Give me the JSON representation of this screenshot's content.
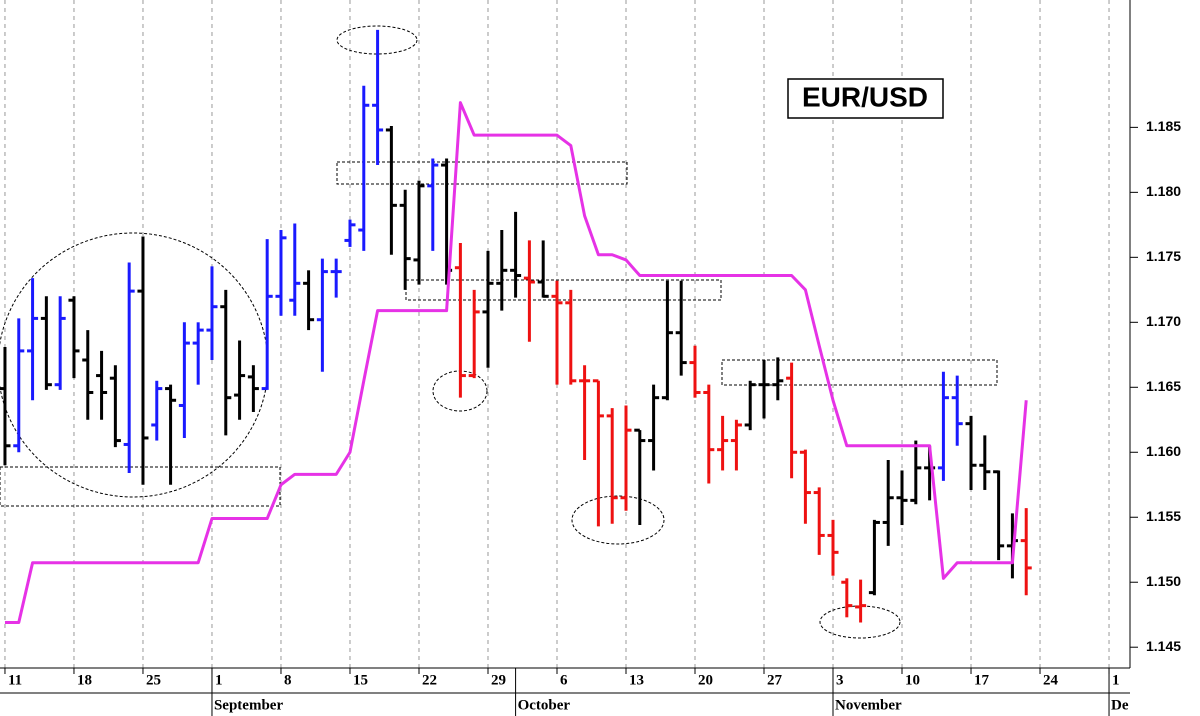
{
  "chart_data": {
    "type": "ohlc",
    "label": "EUR/USD",
    "open": [
      1.1649,
      1.1605,
      1.1678,
      1.1703,
      1.1652,
      1.1717,
      1.1671,
      1.1659,
      1.1657,
      1.1606,
      1.1724,
      1.1621,
      1.1649,
      1.1636,
      1.1684,
      1.1694,
      1.1712,
      1.1644,
      1.1658,
      1.1649,
      1.172,
      1.1717,
      1.173,
      1.1702,
      1.1739,
      1.1763,
      1.1771,
      1.1867,
      1.1848,
      1.179,
      1.1748,
      1.1805,
      1.1821,
      1.1742,
      1.1659,
      1.1708,
      1.173,
      1.174,
      1.1734,
      1.1731,
      1.172,
      1.1715,
      1.1655,
      1.1655,
      1.1628,
      1.1565,
      1.1617,
      1.1609,
      1.1642,
      1.1692,
      1.1669,
      1.1646,
      1.1602,
      1.1609,
      1.1621,
      1.1652,
      1.1652,
      1.1657,
      1.16,
      1.1569,
      1.1536,
      1.15,
      1.1481,
      1.1492,
      1.1546,
      1.1565,
      1.1563,
      1.1588,
      1.1588,
      1.1642,
      1.1622,
      1.159,
      1.1585,
      1.1528,
      1.1532
    ],
    "high": [
      1.1681,
      1.1703,
      1.1734,
      1.172,
      1.172,
      1.172,
      1.1694,
      1.1678,
      1.1667,
      1.1746,
      1.1766,
      1.1655,
      1.1652,
      1.17,
      1.17,
      1.1743,
      1.1725,
      1.1686,
      1.1667,
      1.1764,
      1.1771,
      1.1776,
      1.174,
      1.1749,
      1.1749,
      1.1779,
      1.1882,
      1.1925,
      1.1851,
      1.1802,
      1.1809,
      1.1826,
      1.1826,
      1.1761,
      1.1725,
      1.1755,
      1.1771,
      1.1785,
      1.1763,
      1.1763,
      1.1732,
      1.1725,
      1.1667,
      1.1655,
      1.1634,
      1.1636,
      1.1617,
      1.1652,
      1.1732,
      1.1732,
      1.1682,
      1.1652,
      1.1628,
      1.1625,
      1.1655,
      1.1671,
      1.1673,
      1.1669,
      1.1602,
      1.1573,
      1.1548,
      1.1503,
      1.1502,
      1.1548,
      1.1594,
      1.1586,
      1.1609,
      1.1605,
      1.1662,
      1.1659,
      1.1628,
      1.1613,
      1.1586,
      1.1553,
      1.1557
    ],
    "low": [
      1.159,
      1.16,
      1.164,
      1.1648,
      1.1648,
      1.1657,
      1.1625,
      1.1625,
      1.1604,
      1.1584,
      1.1575,
      1.1609,
      1.1575,
      1.1611,
      1.1652,
      1.1671,
      1.1613,
      1.1625,
      1.1631,
      1.1648,
      1.1705,
      1.1705,
      1.1694,
      1.1662,
      1.1719,
      1.1758,
      1.1755,
      1.1821,
      1.1752,
      1.1725,
      1.1729,
      1.1755,
      1.1729,
      1.1642,
      1.1657,
      1.1665,
      1.1709,
      1.1719,
      1.1685,
      1.1719,
      1.1652,
      1.1652,
      1.1594,
      1.1543,
      1.1545,
      1.1555,
      1.1544,
      1.1586,
      1.164,
      1.1659,
      1.1642,
      1.1576,
      1.1586,
      1.1586,
      1.1617,
      1.1626,
      1.164,
      1.158,
      1.1545,
      1.1521,
      1.1505,
      1.1473,
      1.1469,
      1.149,
      1.1528,
      1.1544,
      1.156,
      1.1563,
      1.1578,
      1.1605,
      1.1571,
      1.1571,
      1.1517,
      1.1503,
      1.149
    ],
    "close": [
      1.1605,
      1.1678,
      1.1703,
      1.1652,
      1.1703,
      1.1678,
      1.1646,
      1.1646,
      1.1609,
      1.1724,
      1.1611,
      1.1649,
      1.164,
      1.1684,
      1.1694,
      1.1712,
      1.1642,
      1.1659,
      1.1649,
      1.172,
      1.1765,
      1.173,
      1.1702,
      1.1739,
      1.1739,
      1.1775,
      1.1867,
      1.1848,
      1.179,
      1.1749,
      1.1805,
      1.1821,
      1.174,
      1.1659,
      1.1708,
      1.173,
      1.174,
      1.1736,
      1.1731,
      1.172,
      1.1715,
      1.1655,
      1.1655,
      1.1628,
      1.1565,
      1.1617,
      1.1609,
      1.1642,
      1.1692,
      1.1669,
      1.1646,
      1.1602,
      1.1609,
      1.1621,
      1.1652,
      1.1652,
      1.1655,
      1.16,
      1.1569,
      1.1536,
      1.1523,
      1.1482,
      1.1482,
      1.1546,
      1.1565,
      1.1563,
      1.1588,
      1.1588,
      1.1642,
      1.1622,
      1.159,
      1.1585,
      1.1528,
      1.1532,
      1.1511
    ],
    "colors": [
      "#000000",
      "#1a1aff",
      "#1a1aff",
      "#000000",
      "#1a1aff",
      "#000000",
      "#000000",
      "#000000",
      "#000000",
      "#1a1aff",
      "#000000",
      "#1a1aff",
      "#000000",
      "#1a1aff",
      "#1a1aff",
      "#1a1aff",
      "#000000",
      "#000000",
      "#000000",
      "#1a1aff",
      "#1a1aff",
      "#1a1aff",
      "#000000",
      "#1a1aff",
      "#1a1aff",
      "#1a1aff",
      "#1a1aff",
      "#1a1aff",
      "#000000",
      "#000000",
      "#000000",
      "#1a1aff",
      "#000000",
      "#ee1111",
      "#ee1111",
      "#000000",
      "#000000",
      "#000000",
      "#ee1111",
      "#000000",
      "#ee1111",
      "#ee1111",
      "#ee1111",
      "#ee1111",
      "#ee1111",
      "#ee1111",
      "#000000",
      "#000000",
      "#000000",
      "#000000",
      "#ee1111",
      "#ee1111",
      "#ee1111",
      "#ee1111",
      "#000000",
      "#000000",
      "#000000",
      "#ee1111",
      "#ee1111",
      "#ee1111",
      "#ee1111",
      "#ee1111",
      "#ee1111",
      "#000000",
      "#000000",
      "#000000",
      "#000000",
      "#000000",
      "#1a1aff",
      "#1a1aff",
      "#000000",
      "#000000",
      "#000000",
      "#000000",
      "#ee1111"
    ],
    "line": {
      "color": "#e632e6",
      "values": [
        1.1469,
        1.1469,
        1.1515,
        1.1515,
        1.1515,
        1.1515,
        1.1515,
        1.1515,
        1.1515,
        1.1515,
        1.1515,
        1.1515,
        1.1515,
        1.1515,
        1.1515,
        1.1549,
        1.1549,
        1.1549,
        1.1549,
        1.1549,
        1.1575,
        1.1583,
        1.1583,
        1.1583,
        1.1583,
        1.16,
        1.1655,
        1.1709,
        1.1709,
        1.1709,
        1.1709,
        1.1709,
        1.1709,
        1.1869,
        1.1844,
        1.1844,
        1.1844,
        1.1844,
        1.1844,
        1.1844,
        1.1844,
        1.1836,
        1.1782,
        1.1752,
        1.1752,
        1.1748,
        1.1736,
        1.1736,
        1.1736,
        1.1736,
        1.1736,
        1.1736,
        1.1736,
        1.1736,
        1.1736,
        1.1736,
        1.1736,
        1.1736,
        1.1725,
        1.1682,
        1.164,
        1.1605,
        1.1605,
        1.1605,
        1.1605,
        1.1605,
        1.1605,
        1.1605,
        1.1503,
        1.1515,
        1.1515,
        1.1515,
        1.1515,
        1.1515,
        1.164
      ]
    },
    "xlim": [
      -0.36,
      81.52
    ],
    "xticks": [
      {
        "value": 0,
        "label": "11"
      },
      {
        "value": 5,
        "label": "18"
      },
      {
        "value": 10,
        "label": "25"
      },
      {
        "value": 15,
        "label": "1"
      },
      {
        "value": 20,
        "label": "8"
      },
      {
        "value": 25,
        "label": "15"
      },
      {
        "value": 30,
        "label": "22"
      },
      {
        "value": 35,
        "label": "29"
      },
      {
        "value": 40,
        "label": "6"
      },
      {
        "value": 45,
        "label": "13"
      },
      {
        "value": 50,
        "label": "20"
      },
      {
        "value": 55,
        "label": "27"
      },
      {
        "value": 60,
        "label": "3"
      },
      {
        "value": 65,
        "label": "10"
      },
      {
        "value": 70,
        "label": "17"
      },
      {
        "value": 75,
        "label": "24"
      },
      {
        "value": 80,
        "label": "1"
      }
    ],
    "month_ticks": [
      {
        "value": 15,
        "label": "September"
      },
      {
        "value": 37,
        "label": "October"
      },
      {
        "value": 60,
        "label": "November"
      },
      {
        "value": 80,
        "label": "De"
      }
    ],
    "ylim": [
      1.1434,
      1.1948
    ],
    "yticks": [
      1.145,
      {
        "value": 1.15,
        "label": "1.150"
      },
      1.155,
      {
        "value": 1.16,
        "label": "1.160"
      },
      1.165,
      {
        "value": 1.17,
        "label": "1.170"
      },
      1.175,
      {
        "value": 1.18,
        "label": "1.180"
      },
      1.185
    ],
    "grid": true
  }
}
